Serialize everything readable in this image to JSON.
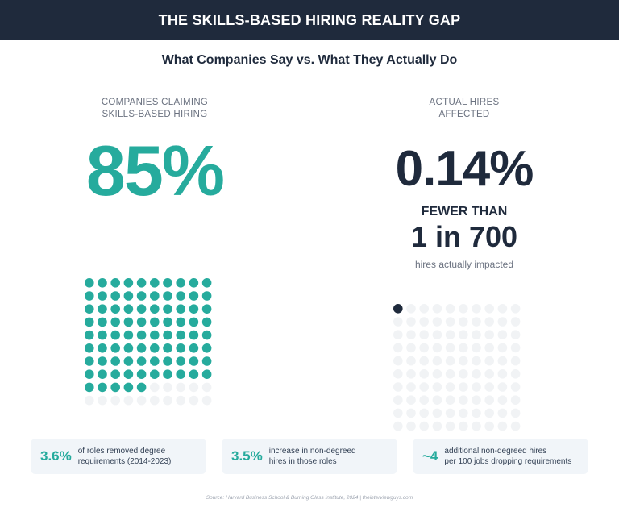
{
  "header": {
    "title": "THE SKILLS-BASED HIRING REALITY GAP"
  },
  "subtitle": "What Companies Say vs. What They Actually Do",
  "left": {
    "label_line1": "COMPANIES CLAIMING",
    "label_line2": "SKILLS-BASED HIRING",
    "big_value": "85%",
    "grid": {
      "filled": 85,
      "total": 100
    }
  },
  "right": {
    "label_line1": "ACTUAL HIRES",
    "label_line2": "AFFECTED",
    "big_value": "0.14%",
    "fewer_than": "FEWER THAN",
    "ratio": "1 in 700",
    "caption": "hires actually impacted",
    "grid": {
      "filled": 1,
      "total": 100
    }
  },
  "stats": [
    {
      "value": "3.6%",
      "line1": "of roles removed degree",
      "line2": "requirements (2014-2023)"
    },
    {
      "value": "3.5%",
      "line1": "increase in non-degreed",
      "line2": "hires in those roles"
    },
    {
      "value": "~4",
      "line1": "additional non-degreed hires",
      "line2": "per 100 jobs dropping requirements"
    }
  ],
  "source": "Source: Harvard Business School & Burning Glass Institute, 2024  |  theinterviewguys.com",
  "colors": {
    "teal": "#26ab9d",
    "navy": "#1f2a3c",
    "empty_dot": "#f1f3f5"
  }
}
